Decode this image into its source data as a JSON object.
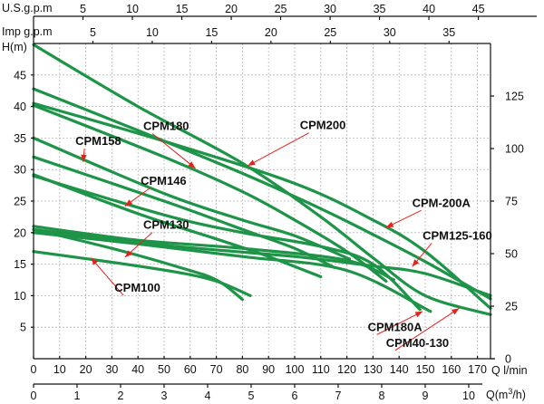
{
  "chart_data": {
    "type": "line",
    "title": "",
    "xlabel": "Q l/min",
    "ylabel_left": "H(m)",
    "ylabel_right": "",
    "units": {
      "head_right_axis": "",
      "secondary_top_1": "U.S.g.p.m",
      "secondary_top_2": "Imp g.p.m",
      "secondary_bottom": "Q(m³/h)"
    },
    "xlim": [
      0,
      175
    ],
    "ylim": [
      0,
      50
    ],
    "right_ylim": [
      0,
      150
    ],
    "grid": true,
    "x_ticks": [
      "0",
      "10",
      "20",
      "30",
      "40",
      "50",
      "60",
      "70",
      "80",
      "90",
      "100",
      "110",
      "120",
      "130",
      "140",
      "150",
      "160",
      "170"
    ],
    "y_ticks_left": [
      "5",
      "10",
      "15",
      "20",
      "25",
      "30",
      "35",
      "40",
      "45"
    ],
    "y_ticks_right": [
      "0",
      "25",
      "50",
      "75",
      "100",
      "125"
    ],
    "usgpm_ticks": [
      "5",
      "10",
      "15",
      "20",
      "25",
      "30",
      "35",
      "40",
      "45"
    ],
    "impgpm_ticks": [
      "5",
      "10",
      "15",
      "20",
      "25",
      "30",
      "35"
    ],
    "m3h_ticks": [
      "0",
      "1",
      "2",
      "3",
      "4",
      "5",
      "6",
      "7",
      "8",
      "9",
      "10"
    ],
    "line_color": "#1e9448",
    "arrow_color": "#e2231a",
    "series": [
      {
        "name": "CPM200",
        "x": [
          0,
          40,
          80,
          110,
          130,
          150,
          175
        ],
        "y": [
          49.8,
          40,
          31,
          22.5,
          16,
          10,
          7
        ]
      },
      {
        "name": "CPM-200A",
        "x": [
          0,
          40,
          80,
          110,
          130,
          150,
          175
        ],
        "y": [
          42.8,
          36.2,
          29.4,
          23.8,
          19.7,
          15.4,
          9.5
        ]
      },
      {
        "name": "CPM125-160",
        "x": [
          0,
          50,
          100,
          130,
          150,
          175
        ],
        "y": [
          40.5,
          34.5,
          27.8,
          22,
          17,
          8
        ]
      },
      {
        "name": "CPM180",
        "x": [
          0,
          50,
          80,
          100,
          120,
          135
        ],
        "y": [
          40.2,
          32,
          26.5,
          22,
          17,
          12.3
        ]
      },
      {
        "name": "CPM158",
        "x": [
          0,
          50,
          80,
          100,
          121
        ],
        "y": [
          35,
          26.2,
          22,
          19.5,
          15.8
        ]
      },
      {
        "name": "CPM146",
        "x": [
          0,
          50,
          80,
          100,
          115
        ],
        "y": [
          32,
          25,
          20.5,
          17.5,
          14.5
        ]
      },
      {
        "name": "CPM130",
        "x": [
          0,
          40,
          70,
          90,
          110
        ],
        "y": [
          29.2,
          23,
          19,
          16.2,
          13
        ]
      },
      {
        "name": "CPM180A",
        "x": [
          0,
          50,
          80,
          110,
          130,
          148
        ],
        "y": [
          29,
          22.8,
          20,
          17.8,
          15,
          7.8
        ]
      },
      {
        "name": "CPM40-130",
        "x": [
          0,
          50,
          100,
          130,
          150,
          175
        ],
        "y": [
          20.5,
          18,
          16.2,
          14.7,
          13.5,
          10
        ]
      },
      {
        "name": "CPM100 (a)",
        "x": [
          0,
          30,
          55,
          70,
          80
        ],
        "y": [
          20.5,
          17.5,
          14.6,
          12.5,
          9.4
        ]
      },
      {
        "name": "CPM100 (b)",
        "x": [
          0,
          30,
          55,
          70,
          83
        ],
        "y": [
          17,
          15.3,
          13.7,
          12.3,
          10
        ]
      },
      {
        "name": "CPM100 (c)",
        "x": [
          0,
          40,
          80,
          120,
          152
        ],
        "y": [
          20,
          18.2,
          16.2,
          14,
          7.5
        ]
      },
      {
        "name": "CPM100 (d)",
        "x": [
          0,
          40,
          80,
          120,
          138
        ],
        "y": [
          21,
          18.8,
          17.5,
          15.6,
          12.5
        ]
      }
    ],
    "labels": [
      {
        "text": "CPM180",
        "x": 42,
        "y": 36.3,
        "arrow_to": [
          62,
          30.2
        ]
      },
      {
        "text": "CPM200",
        "x": 102,
        "y": 36.4,
        "arrow_to": [
          82,
          30.6
        ]
      },
      {
        "text": "CPM158",
        "x": 16,
        "y": 33.9,
        "arrow_to": [
          19,
          31.2
        ]
      },
      {
        "text": "CPM146",
        "x": 41,
        "y": 27.6,
        "arrow_to": [
          35,
          24.2
        ]
      },
      {
        "text": "CPM-200A",
        "x": 145,
        "y": 24.1,
        "arrow_to": [
          135,
          20.8
        ]
      },
      {
        "text": "CPM130",
        "x": 42,
        "y": 20.6,
        "arrow_to": [
          35,
          16.1
        ]
      },
      {
        "text": "CPM125-160",
        "x": 149,
        "y": 18.9,
        "arrow_to": [
          145,
          14.6
        ]
      },
      {
        "text": "CPM100",
        "x": 31,
        "y": 10.6,
        "arrow_to": [
          22,
          16
        ]
      },
      {
        "text": "CPM180A",
        "x": 128,
        "y": 4.4,
        "arrow_to": [
          149,
          7.5
        ]
      },
      {
        "text": "CPM40-130",
        "x": 135,
        "y": 1.9,
        "arrow_to": [
          163,
          8
        ]
      }
    ]
  }
}
